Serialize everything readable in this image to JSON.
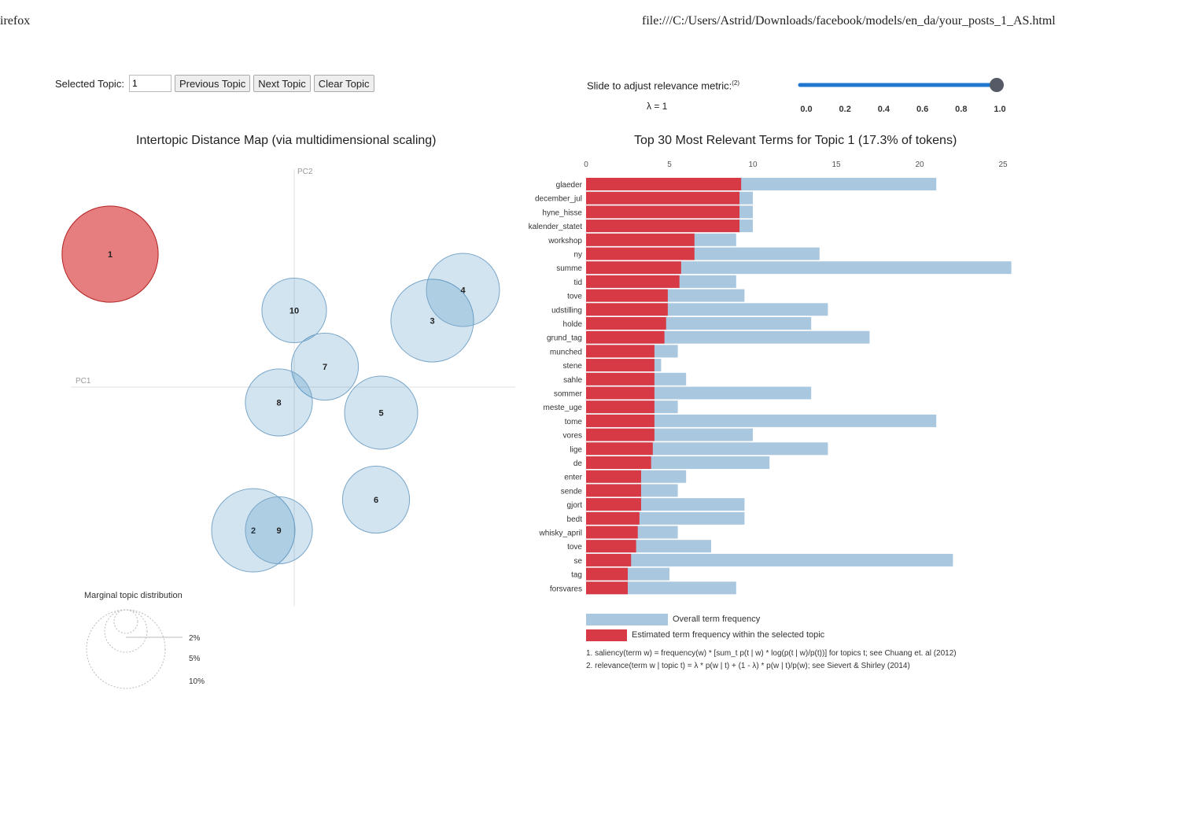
{
  "browser": {
    "app_title": "irefox",
    "url": "file:///C:/Users/Astrid/Downloads/facebook/models/en_da/your_posts_1_AS.html"
  },
  "controls": {
    "selected_topic_label": "Selected Topic:",
    "selected_topic_value": "1",
    "previous_label": "Previous Topic",
    "next_label": "Next Topic",
    "clear_label": "Clear Topic"
  },
  "slider": {
    "label": "Slide to adjust relevance metric:",
    "footnote_ref": "(2)",
    "lambda_text": "λ = 1",
    "value": 1.0,
    "min": 0,
    "max": 1,
    "ticks": [
      "0.0",
      "0.2",
      "0.4",
      "0.6",
      "0.8",
      "1.0"
    ],
    "track_color": "#1f77d0",
    "handle_color": "#555a66"
  },
  "left_panel": {
    "title": "Intertopic Distance Map (via multidimensional scaling)",
    "axis_pc1": "PC1",
    "axis_pc2": "PC2",
    "marginal_title": "Marginal topic distribution",
    "marginal_labels": [
      "2%",
      "5%",
      "10%"
    ]
  },
  "right_panel": {
    "title": "Top 30 Most Relevant Terms for Topic 1 (17.3% of tokens)",
    "legend_overall": "Overall term frequency",
    "legend_estimated": "Estimated term frequency within the selected topic",
    "footnote1": "1. saliency(term w) = frequency(w) * [sum_t p(t | w) * log(p(t | w)/p(t))] for topics t; see Chuang et. al (2012)",
    "footnote2": "2. relevance(term w | topic t) = λ * p(w | t) + (1 - λ) * p(w | t)/p(w); see Sievert & Shirley (2014)"
  },
  "colors": {
    "selected_topic": "#d62728",
    "topic_bubble": "#1f77b4",
    "overall_bar": "#a9c8e0",
    "estimated_bar": "#d73a44"
  },
  "chart_data": [
    {
      "type": "scatter",
      "title": "Intertopic Distance Map (via multidimensional scaling)",
      "xlabel": "PC1",
      "ylabel": "PC2",
      "xlim": [
        -0.45,
        0.45
      ],
      "ylim": [
        -0.45,
        0.45
      ],
      "selected": "1",
      "points": [
        {
          "topic": "1",
          "x": -0.36,
          "y": 0.26,
          "size_pct": 17.3
        },
        {
          "topic": "2",
          "x": -0.08,
          "y": -0.28,
          "size_pct": 13.0
        },
        {
          "topic": "3",
          "x": 0.27,
          "y": 0.13,
          "size_pct": 12.8
        },
        {
          "topic": "4",
          "x": 0.33,
          "y": 0.19,
          "size_pct": 10.0
        },
        {
          "topic": "5",
          "x": 0.17,
          "y": -0.05,
          "size_pct": 10.0
        },
        {
          "topic": "6",
          "x": 0.16,
          "y": -0.22,
          "size_pct": 8.4
        },
        {
          "topic": "7",
          "x": 0.06,
          "y": 0.04,
          "size_pct": 8.4
        },
        {
          "topic": "8",
          "x": -0.03,
          "y": -0.03,
          "size_pct": 8.4
        },
        {
          "topic": "9",
          "x": -0.03,
          "y": -0.28,
          "size_pct": 8.4
        },
        {
          "topic": "10",
          "x": 0.0,
          "y": 0.15,
          "size_pct": 7.8
        }
      ]
    },
    {
      "type": "bar",
      "orientation": "horizontal",
      "title": "Top 30 Most Relevant Terms for Topic 1 (17.3% of tokens)",
      "xlim": [
        0,
        25
      ],
      "xticks": [
        "0",
        "5",
        "10",
        "15",
        "20",
        "25"
      ],
      "categories": [
        "glaeder",
        "december_jul",
        "hyne_hisse",
        "kalender_statet",
        "workshop",
        "ny",
        "summe",
        "tid",
        "tove",
        "udstilling",
        "holde",
        "grund_tag",
        "munched",
        "stene",
        "sahle",
        "sommer",
        "meste_uge",
        "tome",
        "vores",
        "lige",
        "de",
        "enter",
        "sende",
        "gjort",
        "bedt",
        "whisky_april",
        "tove",
        "se",
        "tag",
        "forsvares"
      ],
      "series": [
        {
          "name": "Overall term frequency",
          "values": [
            21,
            10,
            10,
            10,
            9,
            14,
            25.5,
            9,
            9.5,
            14.5,
            13.5,
            17,
            5.5,
            4.5,
            6,
            13.5,
            5.5,
            21,
            10,
            14.5,
            11,
            6,
            5.5,
            9.5,
            9.5,
            5.5,
            7.5,
            22,
            5,
            9
          ]
        },
        {
          "name": "Estimated term frequency within the selected topic",
          "values": [
            9.3,
            9.2,
            9.2,
            9.2,
            6.5,
            6.5,
            5.7,
            5.6,
            4.9,
            4.9,
            4.8,
            4.7,
            4.1,
            4.1,
            4.1,
            4.1,
            4.1,
            4.1,
            4.1,
            4.0,
            3.9,
            3.3,
            3.3,
            3.3,
            3.2,
            3.1,
            3.0,
            2.7,
            2.5,
            2.5
          ]
        }
      ]
    }
  ]
}
